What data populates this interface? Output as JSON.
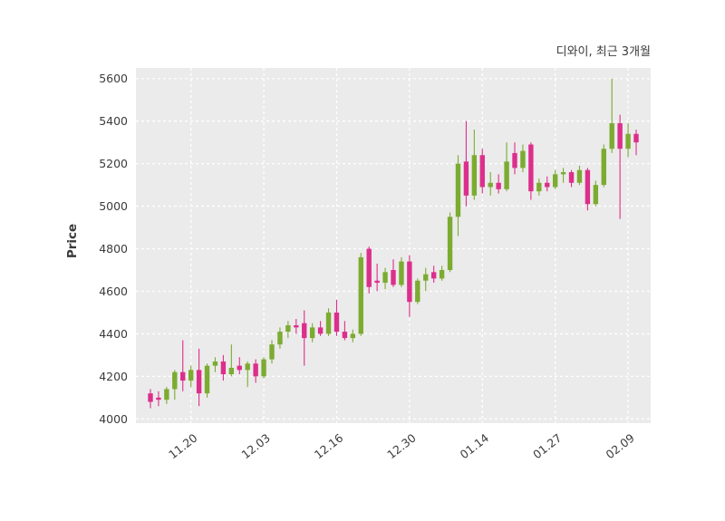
{
  "title": "디와이, 최근 3개월",
  "chart_data": {
    "type": "candlestick",
    "title": "디와이, 최근 3개월",
    "series_name": "디와이",
    "ylabel": "Price",
    "xlabel": "",
    "ylim": [
      3980,
      5650
    ],
    "yticks": [
      4000,
      4200,
      4400,
      4600,
      4800,
      5000,
      5200,
      5400,
      5600
    ],
    "xticks": [
      {
        "label": "11.20",
        "index": 5
      },
      {
        "label": "12.03",
        "index": 14
      },
      {
        "label": "12.16",
        "index": 23
      },
      {
        "label": "12.30",
        "index": 32
      },
      {
        "label": "01.14",
        "index": 41
      },
      {
        "label": "01.27",
        "index": 50
      },
      {
        "label": "02.09",
        "index": 59
      }
    ],
    "grid": true,
    "legend": "none",
    "colors": {
      "up": "#7cab31",
      "down": "#dc2f8c",
      "plot_bg": "#ebebeb",
      "grid": "#ffffff",
      "text": "#3c3c3c"
    },
    "candles_format": [
      "open",
      "high",
      "low",
      "close"
    ],
    "candles": [
      [
        4120,
        4140,
        4050,
        4080
      ],
      [
        4100,
        4130,
        4060,
        4090
      ],
      [
        4090,
        4150,
        4070,
        4140
      ],
      [
        4140,
        4230,
        4090,
        4220
      ],
      [
        4220,
        4370,
        4130,
        4180
      ],
      [
        4180,
        4250,
        4150,
        4230
      ],
      [
        4230,
        4330,
        4060,
        4120
      ],
      [
        4120,
        4260,
        4100,
        4250
      ],
      [
        4250,
        4290,
        4220,
        4270
      ],
      [
        4270,
        4300,
        4180,
        4210
      ],
      [
        4210,
        4350,
        4200,
        4240
      ],
      [
        4250,
        4290,
        4210,
        4230
      ],
      [
        4230,
        4270,
        4150,
        4260
      ],
      [
        4260,
        4280,
        4170,
        4200
      ],
      [
        4200,
        4290,
        4190,
        4280
      ],
      [
        4280,
        4370,
        4260,
        4350
      ],
      [
        4350,
        4430,
        4330,
        4410
      ],
      [
        4410,
        4460,
        4380,
        4440
      ],
      [
        4440,
        4470,
        4400,
        4430
      ],
      [
        4450,
        4510,
        4250,
        4380
      ],
      [
        4380,
        4450,
        4360,
        4430
      ],
      [
        4430,
        4460,
        4390,
        4400
      ],
      [
        4400,
        4520,
        4390,
        4500
      ],
      [
        4500,
        4560,
        4390,
        4410
      ],
      [
        4410,
        4460,
        4370,
        4380
      ],
      [
        4380,
        4420,
        4360,
        4400
      ],
      [
        4400,
        4780,
        4390,
        4760
      ],
      [
        4800,
        4810,
        4590,
        4620
      ],
      [
        4650,
        4730,
        4600,
        4640
      ],
      [
        4640,
        4710,
        4610,
        4690
      ],
      [
        4700,
        4750,
        4620,
        4630
      ],
      [
        4630,
        4760,
        4620,
        4740
      ],
      [
        4740,
        4770,
        4480,
        4550
      ],
      [
        4550,
        4660,
        4540,
        4650
      ],
      [
        4650,
        4710,
        4600,
        4680
      ],
      [
        4690,
        4720,
        4640,
        4660
      ],
      [
        4660,
        4720,
        4650,
        4700
      ],
      [
        4700,
        4970,
        4690,
        4950
      ],
      [
        4950,
        5240,
        4860,
        5200
      ],
      [
        5210,
        5400,
        5000,
        5050
      ],
      [
        5050,
        5360,
        5030,
        5240
      ],
      [
        5240,
        5270,
        5060,
        5090
      ],
      [
        5090,
        5160,
        5050,
        5110
      ],
      [
        5110,
        5150,
        5060,
        5080
      ],
      [
        5080,
        5300,
        5070,
        5210
      ],
      [
        5250,
        5300,
        5150,
        5180
      ],
      [
        5180,
        5290,
        5160,
        5260
      ],
      [
        5290,
        5300,
        5030,
        5070
      ],
      [
        5070,
        5130,
        5050,
        5110
      ],
      [
        5110,
        5140,
        5070,
        5090
      ],
      [
        5090,
        5170,
        5080,
        5150
      ],
      [
        5150,
        5180,
        5110,
        5160
      ],
      [
        5160,
        5170,
        5090,
        5110
      ],
      [
        5110,
        5190,
        5100,
        5170
      ],
      [
        5170,
        5180,
        4980,
        5010
      ],
      [
        5010,
        5120,
        5000,
        5100
      ],
      [
        5100,
        5290,
        5090,
        5270
      ],
      [
        5270,
        5600,
        5250,
        5390
      ],
      [
        5390,
        5430,
        4940,
        5270
      ],
      [
        5270,
        5390,
        5230,
        5340
      ],
      [
        5340,
        5360,
        5240,
        5300
      ]
    ]
  }
}
